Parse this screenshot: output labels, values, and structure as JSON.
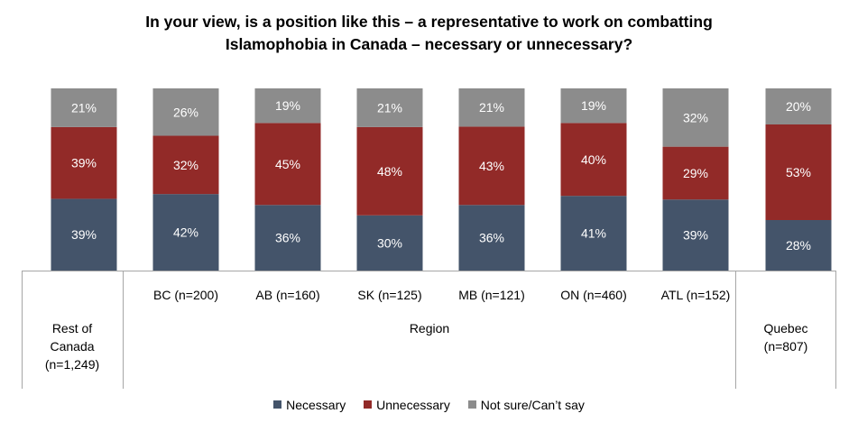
{
  "chart_data": {
    "type": "bar",
    "stacked": true,
    "title_line1": "In your view, is a position like this – a representative to work on combatting",
    "title_line2": "Islamophobia in Canada – necessary or unnecessary?",
    "categories": [
      "Rest of Canada (n=1,249)",
      "BC (n=200)",
      "AB (n=160)",
      "SK (n=125)",
      "MB (n=121)",
      "ON (n=460)",
      "ATL (n=152)",
      "Quebec (n=807)"
    ],
    "group_label": "Region",
    "series": [
      {
        "name": "Necessary",
        "color": "#44546a",
        "values": [
          39,
          42,
          36,
          30,
          36,
          41,
          39,
          28
        ],
        "labels": [
          "39%",
          "42%",
          "36%",
          "30%",
          "36%",
          "41%",
          "39%",
          "28%"
        ]
      },
      {
        "name": "Unnecessary",
        "color": "#922a28",
        "values": [
          39,
          32,
          45,
          48,
          43,
          40,
          29,
          53
        ],
        "labels": [
          "39%",
          "32%",
          "45%",
          "48%",
          "43%",
          "40%",
          "29%",
          "53%"
        ]
      },
      {
        "name": "Not sure/Can’t say",
        "color": "#8c8c8c",
        "values": [
          21,
          26,
          19,
          21,
          21,
          19,
          32,
          20
        ],
        "labels": [
          "21%",
          "26%",
          "19%",
          "21%",
          "21%",
          "19%",
          "32%",
          "20%"
        ]
      }
    ],
    "outer_labels": {
      "rest_of_canada": [
        "Rest of",
        "Canada",
        "(n=1,249)"
      ],
      "quebec": [
        "Quebec",
        "(n=807)"
      ]
    },
    "region_labels": [
      "BC (n=200)",
      "AB (n=160)",
      "SK (n=125)",
      "MB (n=121)",
      "ON (n=460)",
      "ATL (n=152)"
    ],
    "legend": [
      "Necessary",
      "Unnecessary",
      "Not sure/Can’t say"
    ]
  }
}
